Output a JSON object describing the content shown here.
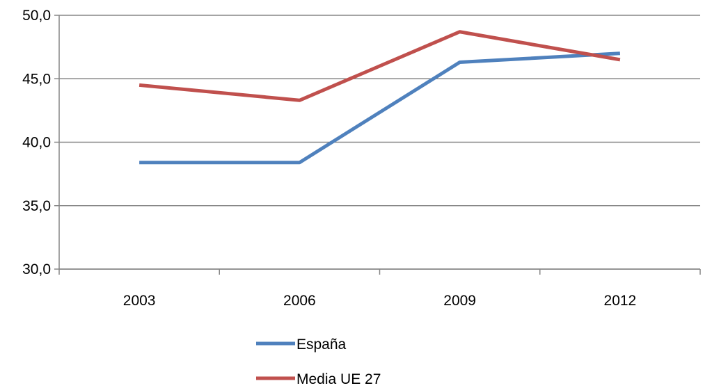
{
  "chart_data": {
    "type": "line",
    "title": "",
    "xlabel": "",
    "ylabel": "",
    "categories": [
      "2003",
      "2006",
      "2009",
      "2012"
    ],
    "ylim": [
      30,
      50
    ],
    "yticks": [
      "30,0",
      "35,0",
      "40,0",
      "45,0",
      "50,0"
    ],
    "grid": "horizontal",
    "legend_position": "bottom",
    "series": [
      {
        "name": "España",
        "color": "#4f81bd",
        "values": [
          38.4,
          38.4,
          46.3,
          47.0
        ]
      },
      {
        "name": "Media UE 27",
        "color": "#c0504d",
        "values": [
          44.5,
          43.3,
          48.7,
          46.5
        ]
      }
    ]
  }
}
